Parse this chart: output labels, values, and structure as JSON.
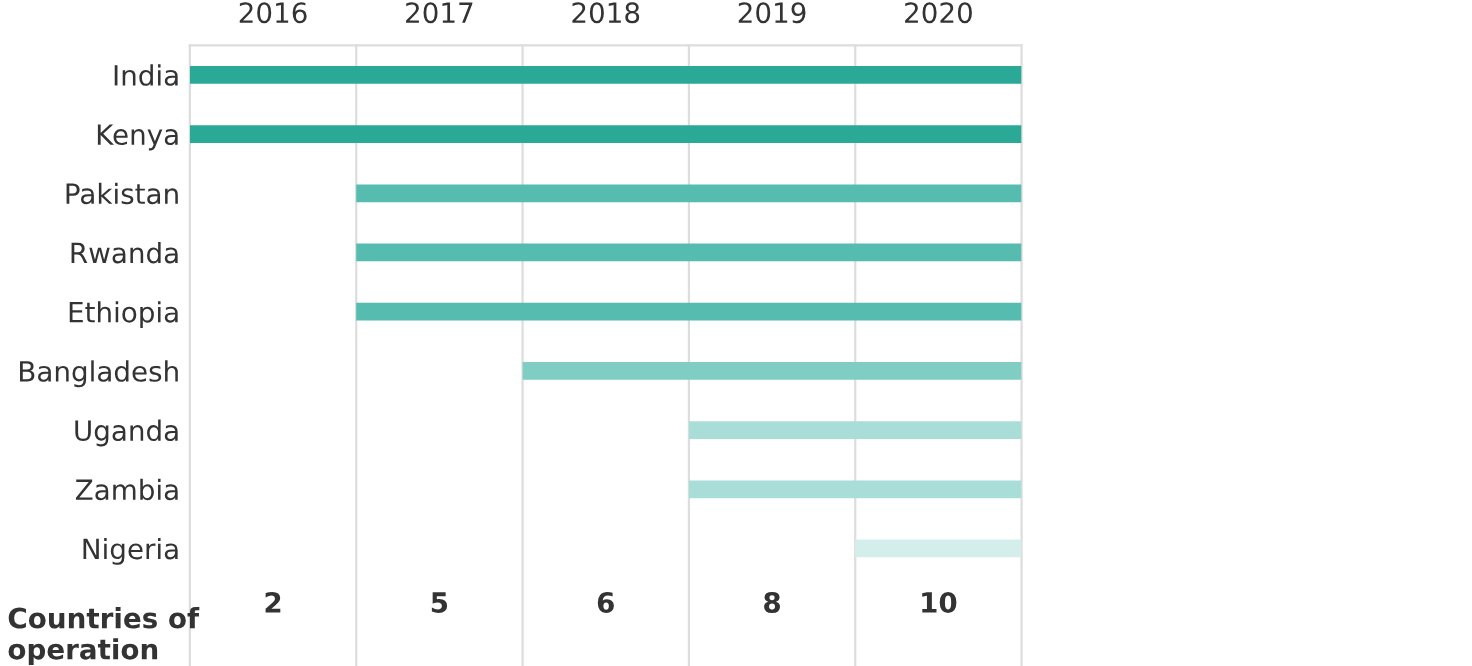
{
  "chart_data": {
    "type": "bar",
    "orientation": "horizontal",
    "categories": [
      "India",
      "Kenya",
      "Pakistan",
      "Rwanda",
      "Ethiopia",
      "Bangladesh",
      "Uganda",
      "Zambia",
      "Nigeria"
    ],
    "base": [
      2016,
      2016,
      2017,
      2017,
      2017,
      2018,
      2019,
      2019,
      2020
    ],
    "values": [
      5,
      5,
      4,
      4,
      4,
      3,
      2,
      2,
      1
    ],
    "colors": [
      "#2aa996",
      "#2aa996",
      "#57bcb0",
      "#57bcb0",
      "#57bcb0",
      "#80cdc4",
      "#a9ded8",
      "#a9ded8",
      "#d4efeb"
    ],
    "xlim": [
      2016,
      2021
    ],
    "xticks": [
      {
        "value": 2016.5,
        "label": "2016"
      },
      {
        "value": 2017.5,
        "label": "2017"
      },
      {
        "value": 2018.5,
        "label": "2018"
      },
      {
        "value": 2019.5,
        "label": "2019"
      },
      {
        "value": 2020.5,
        "label": "2020"
      }
    ],
    "ref_lines": [
      {
        "axis": "x",
        "value": 2016,
        "color": "#dddddd"
      },
      {
        "axis": "x",
        "value": 2017,
        "color": "#dddddd"
      },
      {
        "axis": "x",
        "value": 2018,
        "color": "#dddddd"
      },
      {
        "axis": "x",
        "value": 2019,
        "color": "#dddddd"
      },
      {
        "axis": "x",
        "value": 2020,
        "color": "#dddddd"
      },
      {
        "axis": "x",
        "value": 2021,
        "color": "#dddddd"
      }
    ],
    "annotations": [
      "Countries of operation",
      "2",
      "5",
      "6",
      "8",
      "10"
    ]
  }
}
